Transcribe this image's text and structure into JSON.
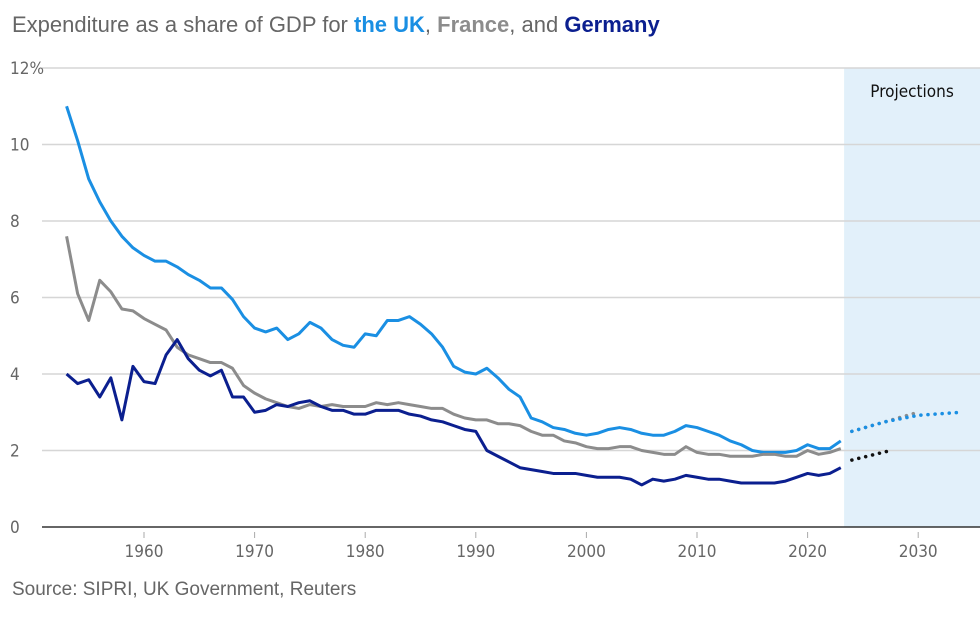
{
  "title": {
    "prefix": "Expenditure as a share of GDP for ",
    "uk": "the UK",
    "sep1": ", ",
    "france": "France",
    "sep2": ", and ",
    "germany": "Germany"
  },
  "source": "Source: SIPRI, UK Government, Reuters",
  "chart_data": {
    "type": "line",
    "ylabel": "",
    "xlabel": "",
    "ylim": [
      0,
      12
    ],
    "xlim": [
      1951.5,
      2035
    ],
    "yticks": [
      "0",
      "2",
      "4",
      "6",
      "8",
      "10",
      "12%"
    ],
    "xticks": [
      "1960",
      "1970",
      "1980",
      "1990",
      "2000",
      "2010",
      "2020",
      "2030"
    ],
    "grid": true,
    "projection_band": {
      "label": "Projections",
      "from": 2023.3,
      "color": "#e2f0fa"
    },
    "colors": {
      "uk": "#1a8fe3",
      "france": "#8c8c8c",
      "germany": "#0b1f8f",
      "germany_projection": "#111111"
    },
    "years_start": 1953,
    "series": [
      {
        "name": "the UK",
        "key": "uk",
        "values": [
          11.0,
          10.1,
          9.1,
          8.5,
          8.0,
          7.6,
          7.3,
          7.1,
          6.95,
          6.95,
          6.8,
          6.6,
          6.45,
          6.25,
          6.25,
          5.95,
          5.5,
          5.2,
          5.1,
          5.2,
          4.9,
          5.05,
          5.35,
          5.2,
          4.9,
          4.75,
          4.7,
          5.05,
          5.0,
          5.4,
          5.4,
          5.5,
          5.3,
          5.05,
          4.7,
          4.2,
          4.05,
          4.0,
          4.15,
          3.9,
          3.6,
          3.4,
          2.85,
          2.75,
          2.6,
          2.55,
          2.45,
          2.4,
          2.45,
          2.55,
          2.6,
          2.55,
          2.45,
          2.4,
          2.4,
          2.5,
          2.65,
          2.6,
          2.5,
          2.4,
          2.25,
          2.15,
          2.0,
          1.95,
          1.95,
          1.95,
          2.0,
          2.15,
          2.05,
          2.05,
          2.25
        ]
      },
      {
        "name": "France",
        "key": "france",
        "values": [
          7.6,
          6.1,
          5.4,
          6.45,
          6.15,
          5.7,
          5.65,
          5.45,
          5.3,
          5.15,
          4.7,
          4.5,
          4.4,
          4.3,
          4.3,
          4.15,
          3.7,
          3.5,
          3.35,
          3.25,
          3.15,
          3.1,
          3.2,
          3.15,
          3.2,
          3.15,
          3.15,
          3.15,
          3.25,
          3.2,
          3.25,
          3.2,
          3.15,
          3.1,
          3.1,
          2.95,
          2.85,
          2.8,
          2.8,
          2.7,
          2.7,
          2.65,
          2.5,
          2.4,
          2.4,
          2.25,
          2.2,
          2.1,
          2.05,
          2.05,
          2.1,
          2.1,
          2.0,
          1.95,
          1.9,
          1.9,
          2.1,
          1.95,
          1.9,
          1.9,
          1.85,
          1.85,
          1.85,
          1.9,
          1.9,
          1.85,
          1.85,
          2.0,
          1.9,
          1.95,
          2.05
        ]
      },
      {
        "name": "Germany",
        "key": "germany",
        "values": [
          4.0,
          3.75,
          3.85,
          3.4,
          3.9,
          2.8,
          4.2,
          3.8,
          3.75,
          4.5,
          4.9,
          4.4,
          4.1,
          3.95,
          4.1,
          3.4,
          3.4,
          3.0,
          3.05,
          3.2,
          3.15,
          3.25,
          3.3,
          3.15,
          3.05,
          3.05,
          2.95,
          2.95,
          3.05,
          3.05,
          3.05,
          2.95,
          2.9,
          2.8,
          2.75,
          2.65,
          2.55,
          2.5,
          2.0,
          1.85,
          1.7,
          1.55,
          1.5,
          1.45,
          1.4,
          1.4,
          1.4,
          1.35,
          1.3,
          1.3,
          1.3,
          1.25,
          1.1,
          1.25,
          1.2,
          1.25,
          1.35,
          1.3,
          1.25,
          1.25,
          1.2,
          1.15,
          1.15,
          1.15,
          1.15,
          1.2,
          1.3,
          1.4,
          1.35,
          1.4,
          1.55
        ]
      }
    ],
    "projections": [
      {
        "key": "france",
        "x": [
          2024,
          2030
        ],
        "y": [
          2.5,
          3.0
        ]
      },
      {
        "key": "uk",
        "x": [
          2024,
          2027,
          2030,
          2034
        ],
        "y": [
          2.5,
          2.75,
          2.92,
          3.0
        ]
      },
      {
        "key": "germany_projection",
        "x": [
          2024,
          2027.5
        ],
        "y": [
          1.75,
          2.0
        ]
      }
    ]
  }
}
